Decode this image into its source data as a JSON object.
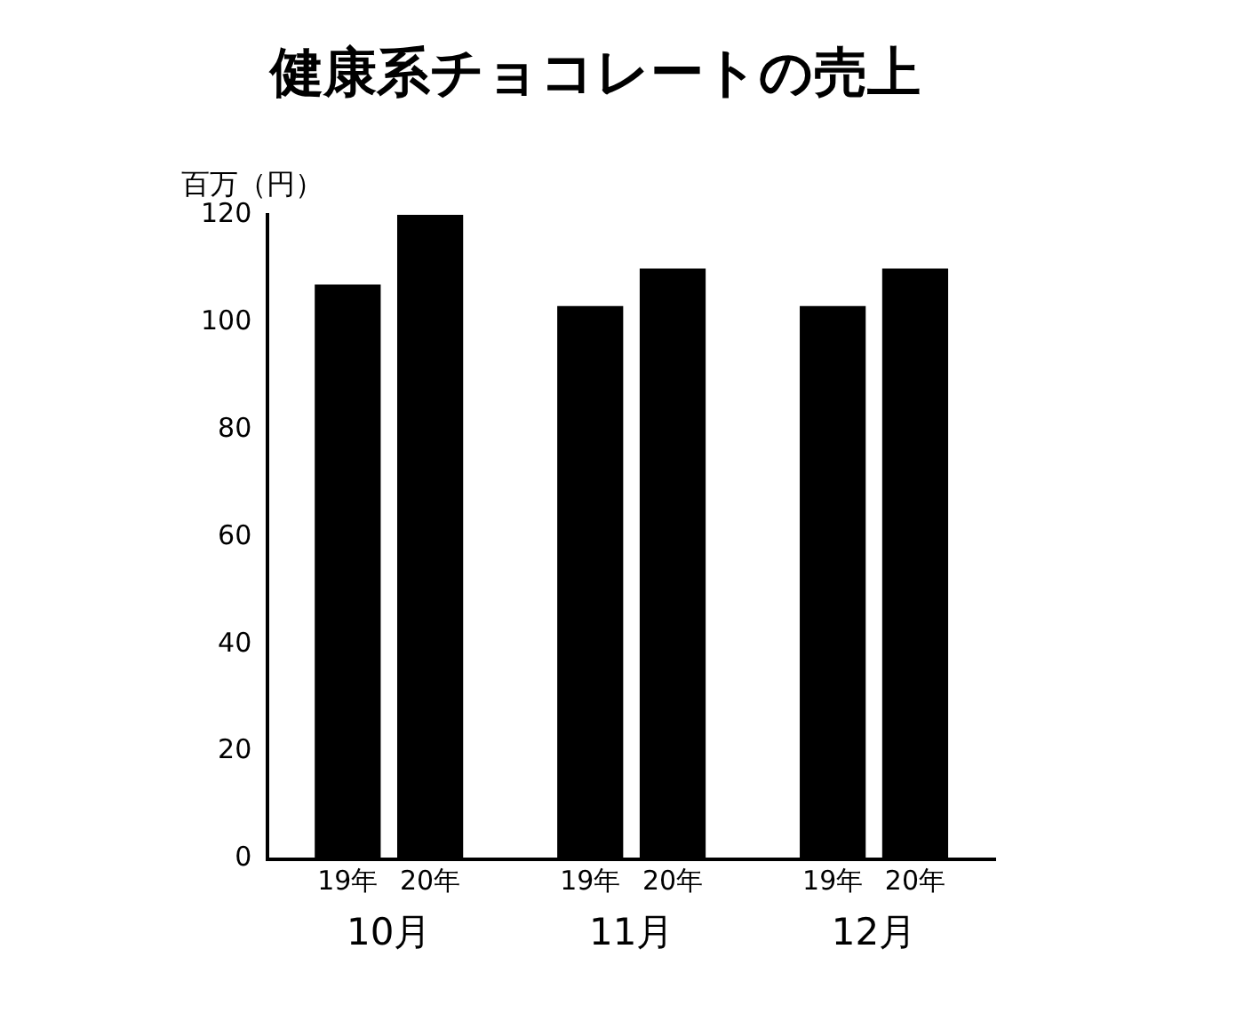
{
  "chart_data": {
    "type": "bar",
    "title": "健康系チョコレートの売上",
    "ylabel": "百万（円）",
    "categories": [
      "10月",
      "11月",
      "12月"
    ],
    "series": [
      {
        "name": "19年",
        "color": "#000000",
        "values": [
          107,
          103,
          103
        ]
      },
      {
        "name": "20年",
        "color": "#000000",
        "values": [
          120,
          110,
          110
        ]
      }
    ],
    "ylim": [
      0,
      120
    ],
    "yticks": [
      0,
      20,
      40,
      60,
      80,
      100,
      120
    ],
    "grid": false,
    "legend": false
  }
}
